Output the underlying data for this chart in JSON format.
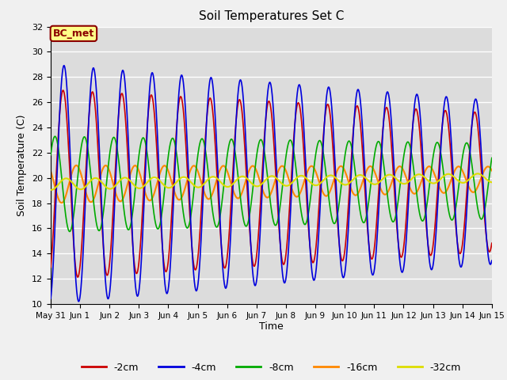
{
  "title": "Soil Temperatures Set C",
  "xlabel": "Time",
  "ylabel": "Soil Temperature (C)",
  "ylim": [
    10,
    32
  ],
  "fig_bg_color": "#f0f0f0",
  "plot_bg_color": "#dcdcdc",
  "annotation_text": "BC_met",
  "annotation_bg": "#ffff88",
  "annotation_border": "#8b0000",
  "lines": {
    "-2cm": {
      "color": "#cc0000",
      "lw": 1.2
    },
    "-4cm": {
      "color": "#0000dd",
      "lw": 1.2
    },
    "-8cm": {
      "color": "#00aa00",
      "lw": 1.2
    },
    "-16cm": {
      "color": "#ff8800",
      "lw": 1.5
    },
    "-32cm": {
      "color": "#dddd00",
      "lw": 1.5
    }
  },
  "xtick_labels": [
    "May 31",
    "Jun 1",
    "Jun 2",
    "Jun 3",
    "Jun 4",
    "Jun 5",
    "Jun 6",
    "Jun 7",
    "Jun 8",
    "Jun 9",
    "Jun 10",
    "Jun 11",
    "Jun 12",
    "Jun 13",
    "Jun 14",
    "Jun 15"
  ],
  "mean_temp": 19.5,
  "n_pts": 3600,
  "n_days": 15
}
